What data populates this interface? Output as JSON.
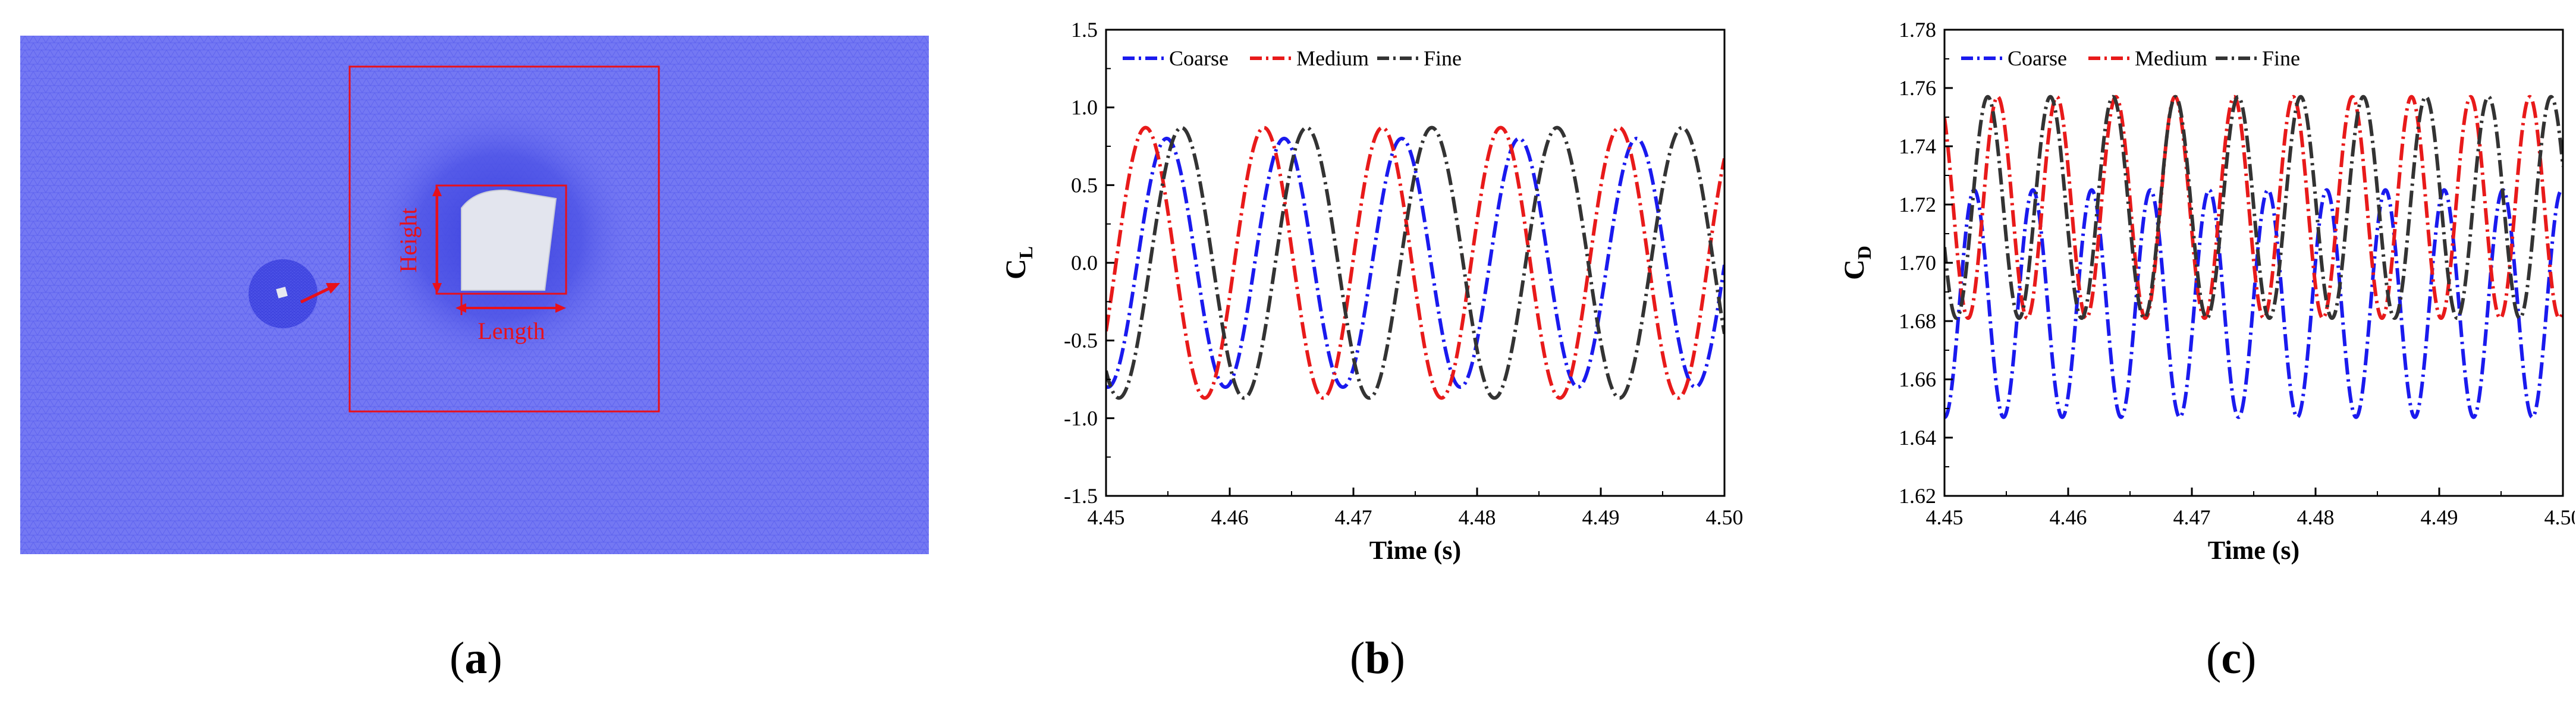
{
  "panel_a": {
    "caption_label": "a",
    "height_label": "Height",
    "length_label": "Length",
    "colors": {
      "mesh": "#6f74f2",
      "mesh_dense": "#3c43e0",
      "box": "#e8101a",
      "body": "#e4e6ee"
    }
  },
  "panel_b": {
    "caption_label": "b"
  },
  "panel_c": {
    "caption_label": "c"
  },
  "chart_data": [
    {
      "type": "line",
      "xlabel": "Time (s)",
      "ylabel_main": "C",
      "ylabel_sub": "L",
      "xlim": [
        4.45,
        4.5
      ],
      "ylim": [
        -1.5,
        1.5
      ],
      "xticks": [
        "4.45",
        "4.46",
        "4.47",
        "4.48",
        "4.49",
        "4.50"
      ],
      "yticks": [
        "-1.5",
        "-1.0",
        "-0.5",
        "0.0",
        "0.5",
        "1.0",
        "1.5"
      ],
      "grid": false,
      "legend": "top-left",
      "series": [
        {
          "name": "Coarse",
          "color": "#1a1aee",
          "dash": "dashdot",
          "amplitude": 0.8,
          "offset": 0.0,
          "period": 0.0095,
          "peak_time": 4.4549
        },
        {
          "name": "Medium",
          "color": "#e81a1a",
          "dash": "dashdot",
          "amplitude": 0.87,
          "offset": 0.0,
          "period": 0.00957,
          "peak_time": 4.4532
        },
        {
          "name": "Fine",
          "color": "#333333",
          "dash": "dashdot",
          "amplitude": 0.87,
          "offset": 0.0,
          "period": 0.01012,
          "peak_time": 4.4561
        }
      ]
    },
    {
      "type": "line",
      "xlabel": "Time (s)",
      "ylabel_main": "C",
      "ylabel_sub": "D",
      "xlim": [
        4.45,
        4.5
      ],
      "ylim": [
        1.62,
        1.78
      ],
      "xticks": [
        "4.45",
        "4.46",
        "4.47",
        "4.48",
        "4.49",
        "4.50"
      ],
      "yticks": [
        "1.62",
        "1.64",
        "1.66",
        "1.68",
        "1.70",
        "1.72",
        "1.74",
        "1.76",
        "1.78"
      ],
      "grid": false,
      "legend": "top-left",
      "series": [
        {
          "name": "Coarse",
          "color": "#1a1aee",
          "dash": "dashdot",
          "amplitude": 0.039,
          "offset": 1.686,
          "period": 0.00475,
          "peak_time": 4.4524
        },
        {
          "name": "Medium",
          "color": "#e81a1a",
          "dash": "dashdot",
          "amplitude": 0.038,
          "offset": 1.719,
          "period": 0.00478,
          "peak_time": 4.4543
        },
        {
          "name": "Fine",
          "color": "#333333",
          "dash": "dashdot",
          "amplitude": 0.038,
          "offset": 1.719,
          "period": 0.00506,
          "peak_time": 4.4535
        }
      ]
    }
  ]
}
